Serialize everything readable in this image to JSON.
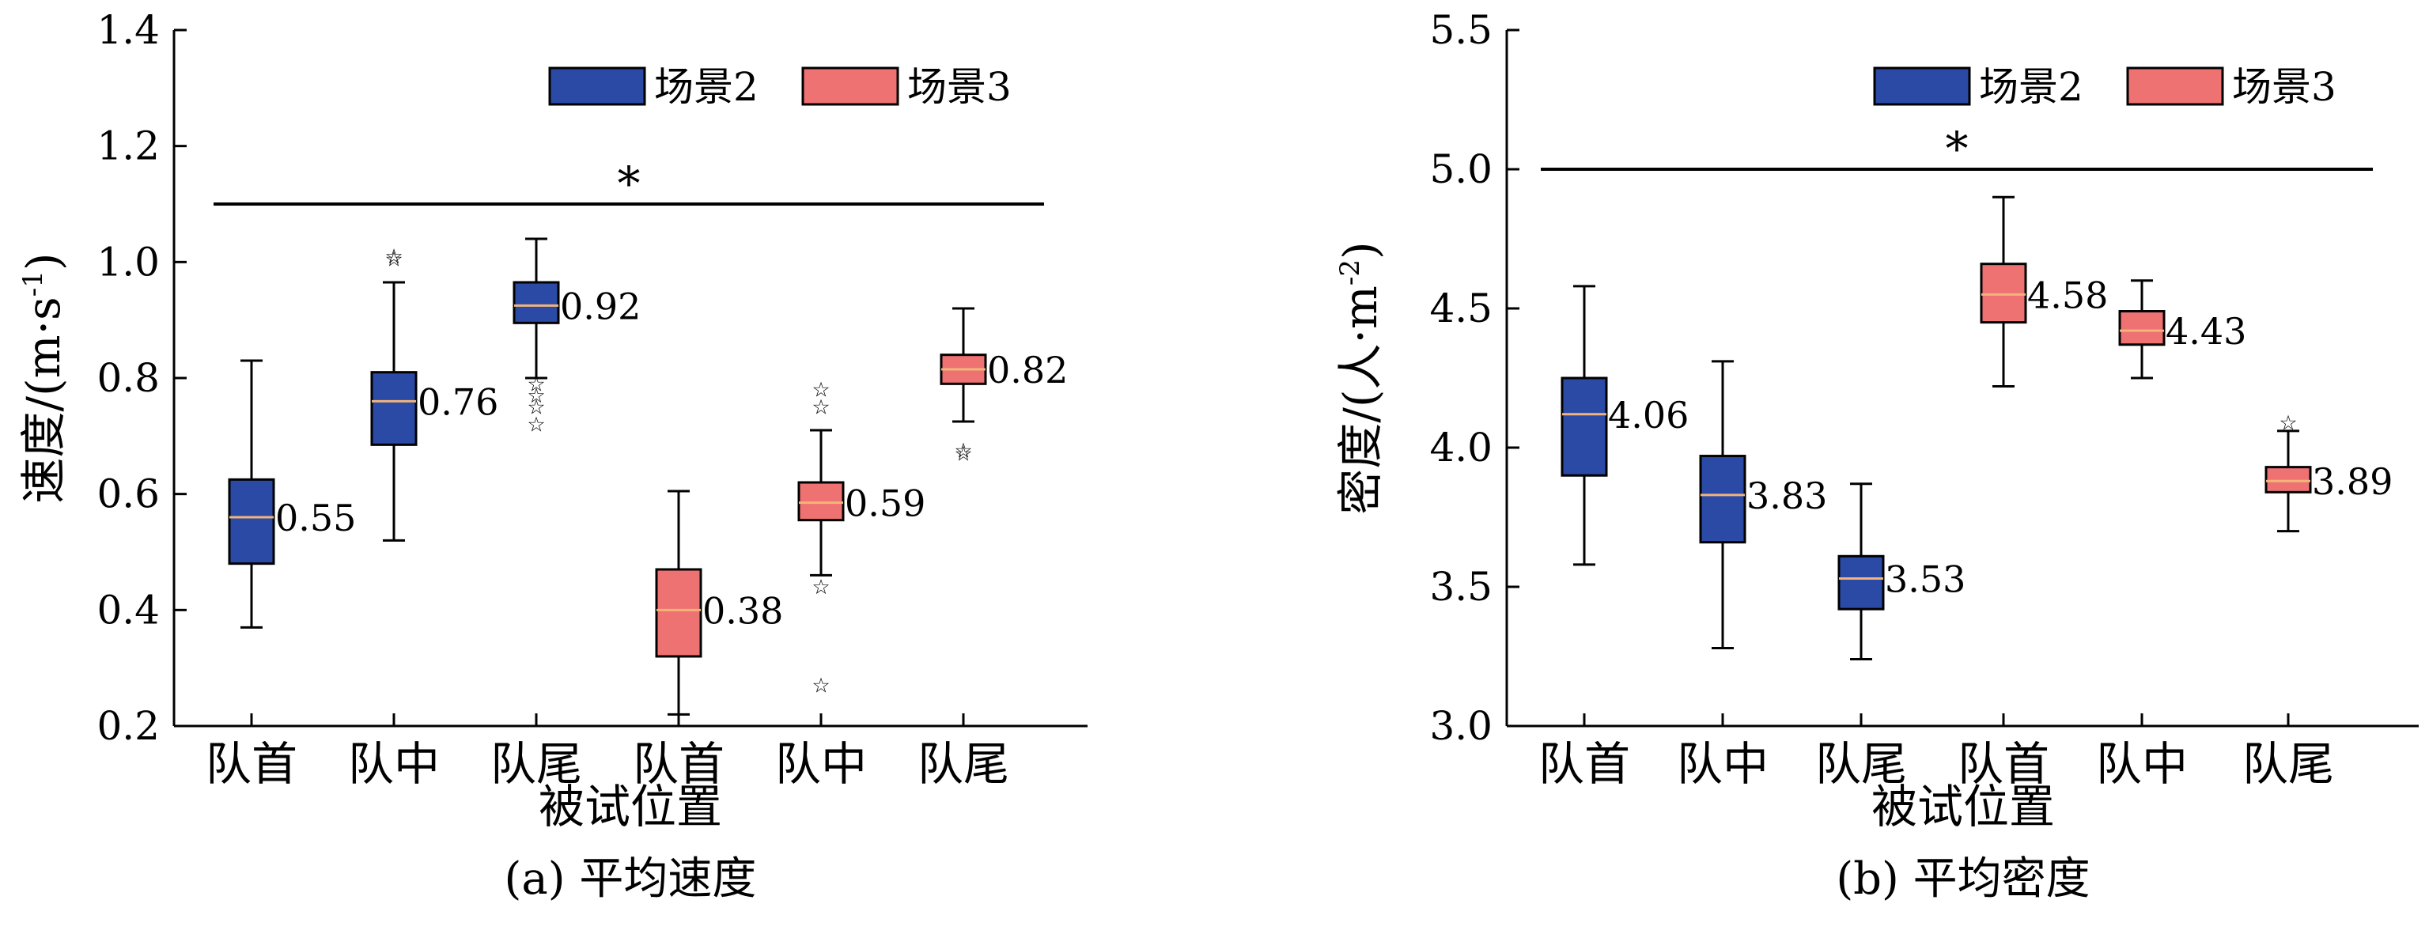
{
  "colors": {
    "scene2": "#2a4aa6",
    "scene3": "#ef7272",
    "median": "#f2b47a"
  },
  "chart_data": [
    {
      "type": "box",
      "caption": "(a) 平均速度",
      "xlabel": "被试位置",
      "ylabel_main": "速度/(m·s",
      "ylabel_sup": "-1",
      "ylabel_end": ")",
      "ylim": [
        0.2,
        1.4
      ],
      "yticks": [
        "0.2",
        "0.4",
        "0.6",
        "0.8",
        "1.0",
        "1.2",
        "1.4"
      ],
      "categories": [
        "队首",
        "队中",
        "队尾",
        "队首",
        "队中",
        "队尾"
      ],
      "legend": [
        "场景2",
        "场景3"
      ],
      "significance": "*",
      "sig_y": 1.1,
      "boxes": [
        {
          "category": "队首",
          "series": "场景2",
          "whisker_low": 0.37,
          "q1": 0.48,
          "median": 0.56,
          "q3": 0.625,
          "whisker_high": 0.83,
          "label": "0.55",
          "outliers": []
        },
        {
          "category": "队中",
          "series": "场景2",
          "whisker_low": 0.52,
          "q1": 0.685,
          "median": 0.76,
          "q3": 0.81,
          "whisker_high": 0.965,
          "label": "0.76",
          "outliers": [
            1.005,
            1.01
          ]
        },
        {
          "category": "队尾",
          "series": "场景2",
          "whisker_low": 0.8,
          "q1": 0.895,
          "median": 0.925,
          "q3": 0.965,
          "whisker_high": 1.04,
          "label": "0.92",
          "outliers": [
            0.79,
            0.77,
            0.75,
            0.72
          ]
        },
        {
          "category": "队首",
          "series": "场景3",
          "whisker_low": 0.22,
          "q1": 0.32,
          "median": 0.4,
          "q3": 0.47,
          "whisker_high": 0.605,
          "label": "0.38",
          "outliers": []
        },
        {
          "category": "队中",
          "series": "场景3",
          "whisker_low": 0.46,
          "q1": 0.555,
          "median": 0.585,
          "q3": 0.62,
          "whisker_high": 0.71,
          "label": "0.59",
          "outliers": [
            0.78,
            0.75,
            0.44,
            0.27
          ]
        },
        {
          "category": "队尾",
          "series": "场景3",
          "whisker_low": 0.725,
          "q1": 0.79,
          "median": 0.815,
          "q3": 0.84,
          "whisker_high": 0.92,
          "label": "0.82",
          "outliers": [
            0.675,
            0.67
          ]
        }
      ]
    },
    {
      "type": "box",
      "caption": "(b) 平均密度",
      "xlabel": "被试位置",
      "ylabel_main": "密度/(人·m",
      "ylabel_sup": "-2",
      "ylabel_end": ")",
      "ylim": [
        3.0,
        5.5
      ],
      "yticks": [
        "3.0",
        "3.5",
        "4.0",
        "4.5",
        "5.0",
        "5.5"
      ],
      "categories": [
        "队首",
        "队中",
        "队尾",
        "队首",
        "队中",
        "队尾"
      ],
      "legend": [
        "场景2",
        "场景3"
      ],
      "significance": "*",
      "sig_y": 5.0,
      "boxes": [
        {
          "category": "队首",
          "series": "场景2",
          "whisker_low": 3.58,
          "q1": 3.9,
          "median": 4.12,
          "q3": 4.25,
          "whisker_high": 4.58,
          "label": "4.06",
          "outliers": []
        },
        {
          "category": "队中",
          "series": "场景2",
          "whisker_low": 3.28,
          "q1": 3.66,
          "median": 3.83,
          "q3": 3.97,
          "whisker_high": 4.31,
          "label": "3.83",
          "outliers": []
        },
        {
          "category": "队尾",
          "series": "场景2",
          "whisker_low": 3.24,
          "q1": 3.42,
          "median": 3.53,
          "q3": 3.61,
          "whisker_high": 3.87,
          "label": "3.53",
          "outliers": []
        },
        {
          "category": "队首",
          "series": "场景3",
          "whisker_low": 4.22,
          "q1": 4.45,
          "median": 4.55,
          "q3": 4.66,
          "whisker_high": 4.9,
          "label": "4.58",
          "outliers": []
        },
        {
          "category": "队中",
          "series": "场景3",
          "whisker_low": 4.25,
          "q1": 4.37,
          "median": 4.42,
          "q3": 4.49,
          "whisker_high": 4.6,
          "label": "4.43",
          "outliers": []
        },
        {
          "category": "队尾",
          "series": "场景3",
          "whisker_low": 3.7,
          "q1": 3.84,
          "median": 3.88,
          "q3": 3.93,
          "whisker_high": 4.06,
          "label": "3.89",
          "outliers": [
            4.09
          ]
        }
      ]
    }
  ]
}
